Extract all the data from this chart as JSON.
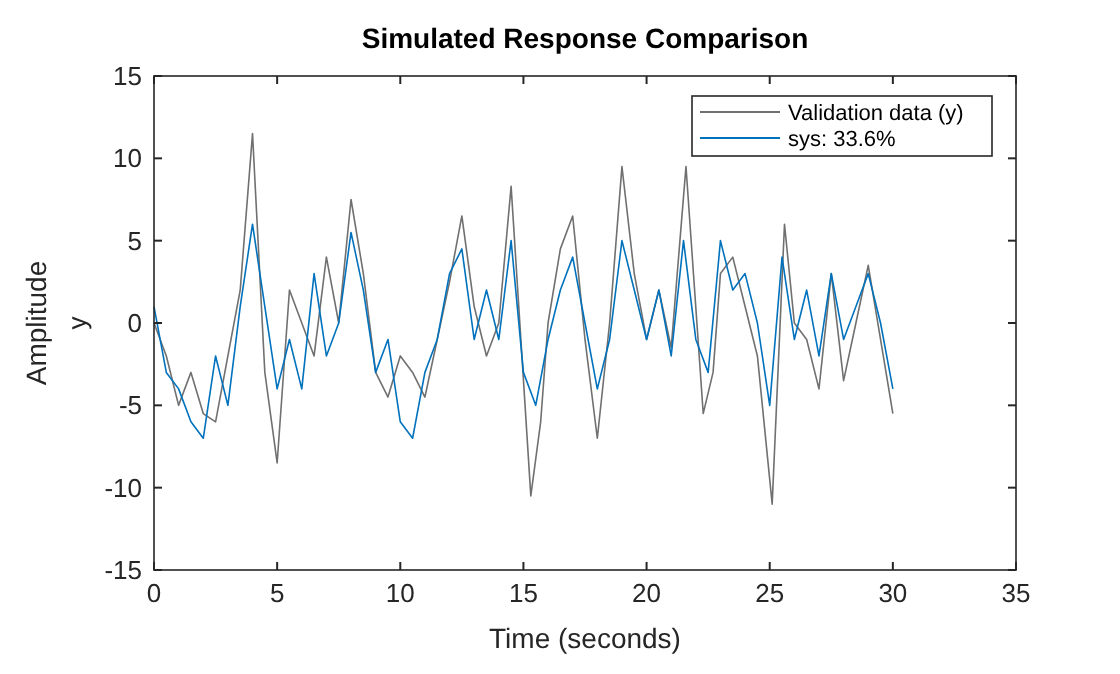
{
  "chart_data": {
    "type": "line",
    "title": "Simulated Response Comparison",
    "xlabel": "Time (seconds)",
    "ylabel": "Amplitude",
    "annotations": [
      "y"
    ],
    "xlim": [
      0,
      35
    ],
    "xticks": [
      0,
      5,
      10,
      15,
      20,
      25,
      30,
      35
    ],
    "ylim": [
      -15,
      15
    ],
    "yticks": [
      -15,
      -10,
      -5,
      0,
      5,
      10,
      15
    ],
    "legend": "top right",
    "grid": false,
    "line_style": "solid",
    "series": [
      {
        "name": "Validation data (y)",
        "color": "#707070",
        "x": [
          0,
          0.5,
          1,
          1.5,
          2,
          2.5,
          3,
          3.5,
          4,
          4.5,
          5,
          5.5,
          6,
          6.5,
          7,
          7.5,
          8,
          8.5,
          9,
          9.5,
          10,
          10.5,
          11,
          11.5,
          12,
          12.5,
          13,
          13.5,
          14,
          14.5,
          15.3,
          15.7,
          16,
          16.5,
          17,
          17.5,
          18,
          18.5,
          19,
          19.5,
          20,
          20.5,
          21,
          21.6,
          22.3,
          22.7,
          23,
          23.5,
          24,
          24.5,
          25.1,
          25.6,
          26,
          26.5,
          27,
          27.5,
          28,
          28.5,
          29,
          29.5,
          30
        ],
        "values": [
          0,
          -2,
          -5,
          -3,
          -5.5,
          -6,
          -2,
          2,
          11.5,
          -3,
          -8.5,
          2,
          0,
          -2,
          4,
          0,
          7.5,
          3,
          -3,
          -4.5,
          -2,
          -3,
          -4.5,
          -1,
          2.5,
          6.5,
          1,
          -2,
          0,
          8.3,
          -10.5,
          -6,
          0,
          4.5,
          6.5,
          -1,
          -7,
          0,
          9.5,
          3,
          -1,
          2,
          -1.5,
          9.5,
          -5.5,
          -3,
          3,
          4,
          1,
          -2,
          -11,
          6,
          0,
          -1,
          -4,
          3,
          -3.5,
          0,
          3.5,
          -1,
          -5.5
        ]
      },
      {
        "name": "sys: 33.6%",
        "color": "#0072bd",
        "x": [
          0,
          0.5,
          1,
          1.5,
          2,
          2.5,
          3,
          3.5,
          4,
          4.5,
          5,
          5.5,
          6,
          6.5,
          7,
          7.5,
          8,
          8.5,
          9,
          9.5,
          10,
          10.5,
          11,
          11.5,
          12,
          12.5,
          13,
          13.5,
          14,
          14.5,
          15,
          15.5,
          16,
          16.5,
          17,
          17.5,
          18,
          18.5,
          19,
          19.5,
          20,
          20.5,
          21,
          21.5,
          22,
          22.5,
          23,
          23.5,
          24,
          24.5,
          25,
          25.5,
          26,
          26.5,
          27,
          27.5,
          28,
          28.5,
          29,
          29.5,
          30
        ],
        "values": [
          1,
          -3,
          -4,
          -6,
          -7,
          -2,
          -5,
          1,
          6,
          1,
          -4,
          -1,
          -4,
          3,
          -2,
          0,
          5.5,
          2,
          -3,
          -1,
          -6,
          -7,
          -3,
          -1,
          3,
          4.5,
          -1,
          2,
          -1,
          5,
          -3,
          -5,
          -1,
          2,
          4,
          0,
          -4,
          -1,
          5,
          2,
          -1,
          2,
          -2,
          5,
          -1,
          -3,
          5,
          2,
          3,
          0,
          -5,
          4,
          -1,
          2,
          -2,
          3,
          -1,
          1,
          3,
          0,
          -4
        ]
      }
    ]
  }
}
